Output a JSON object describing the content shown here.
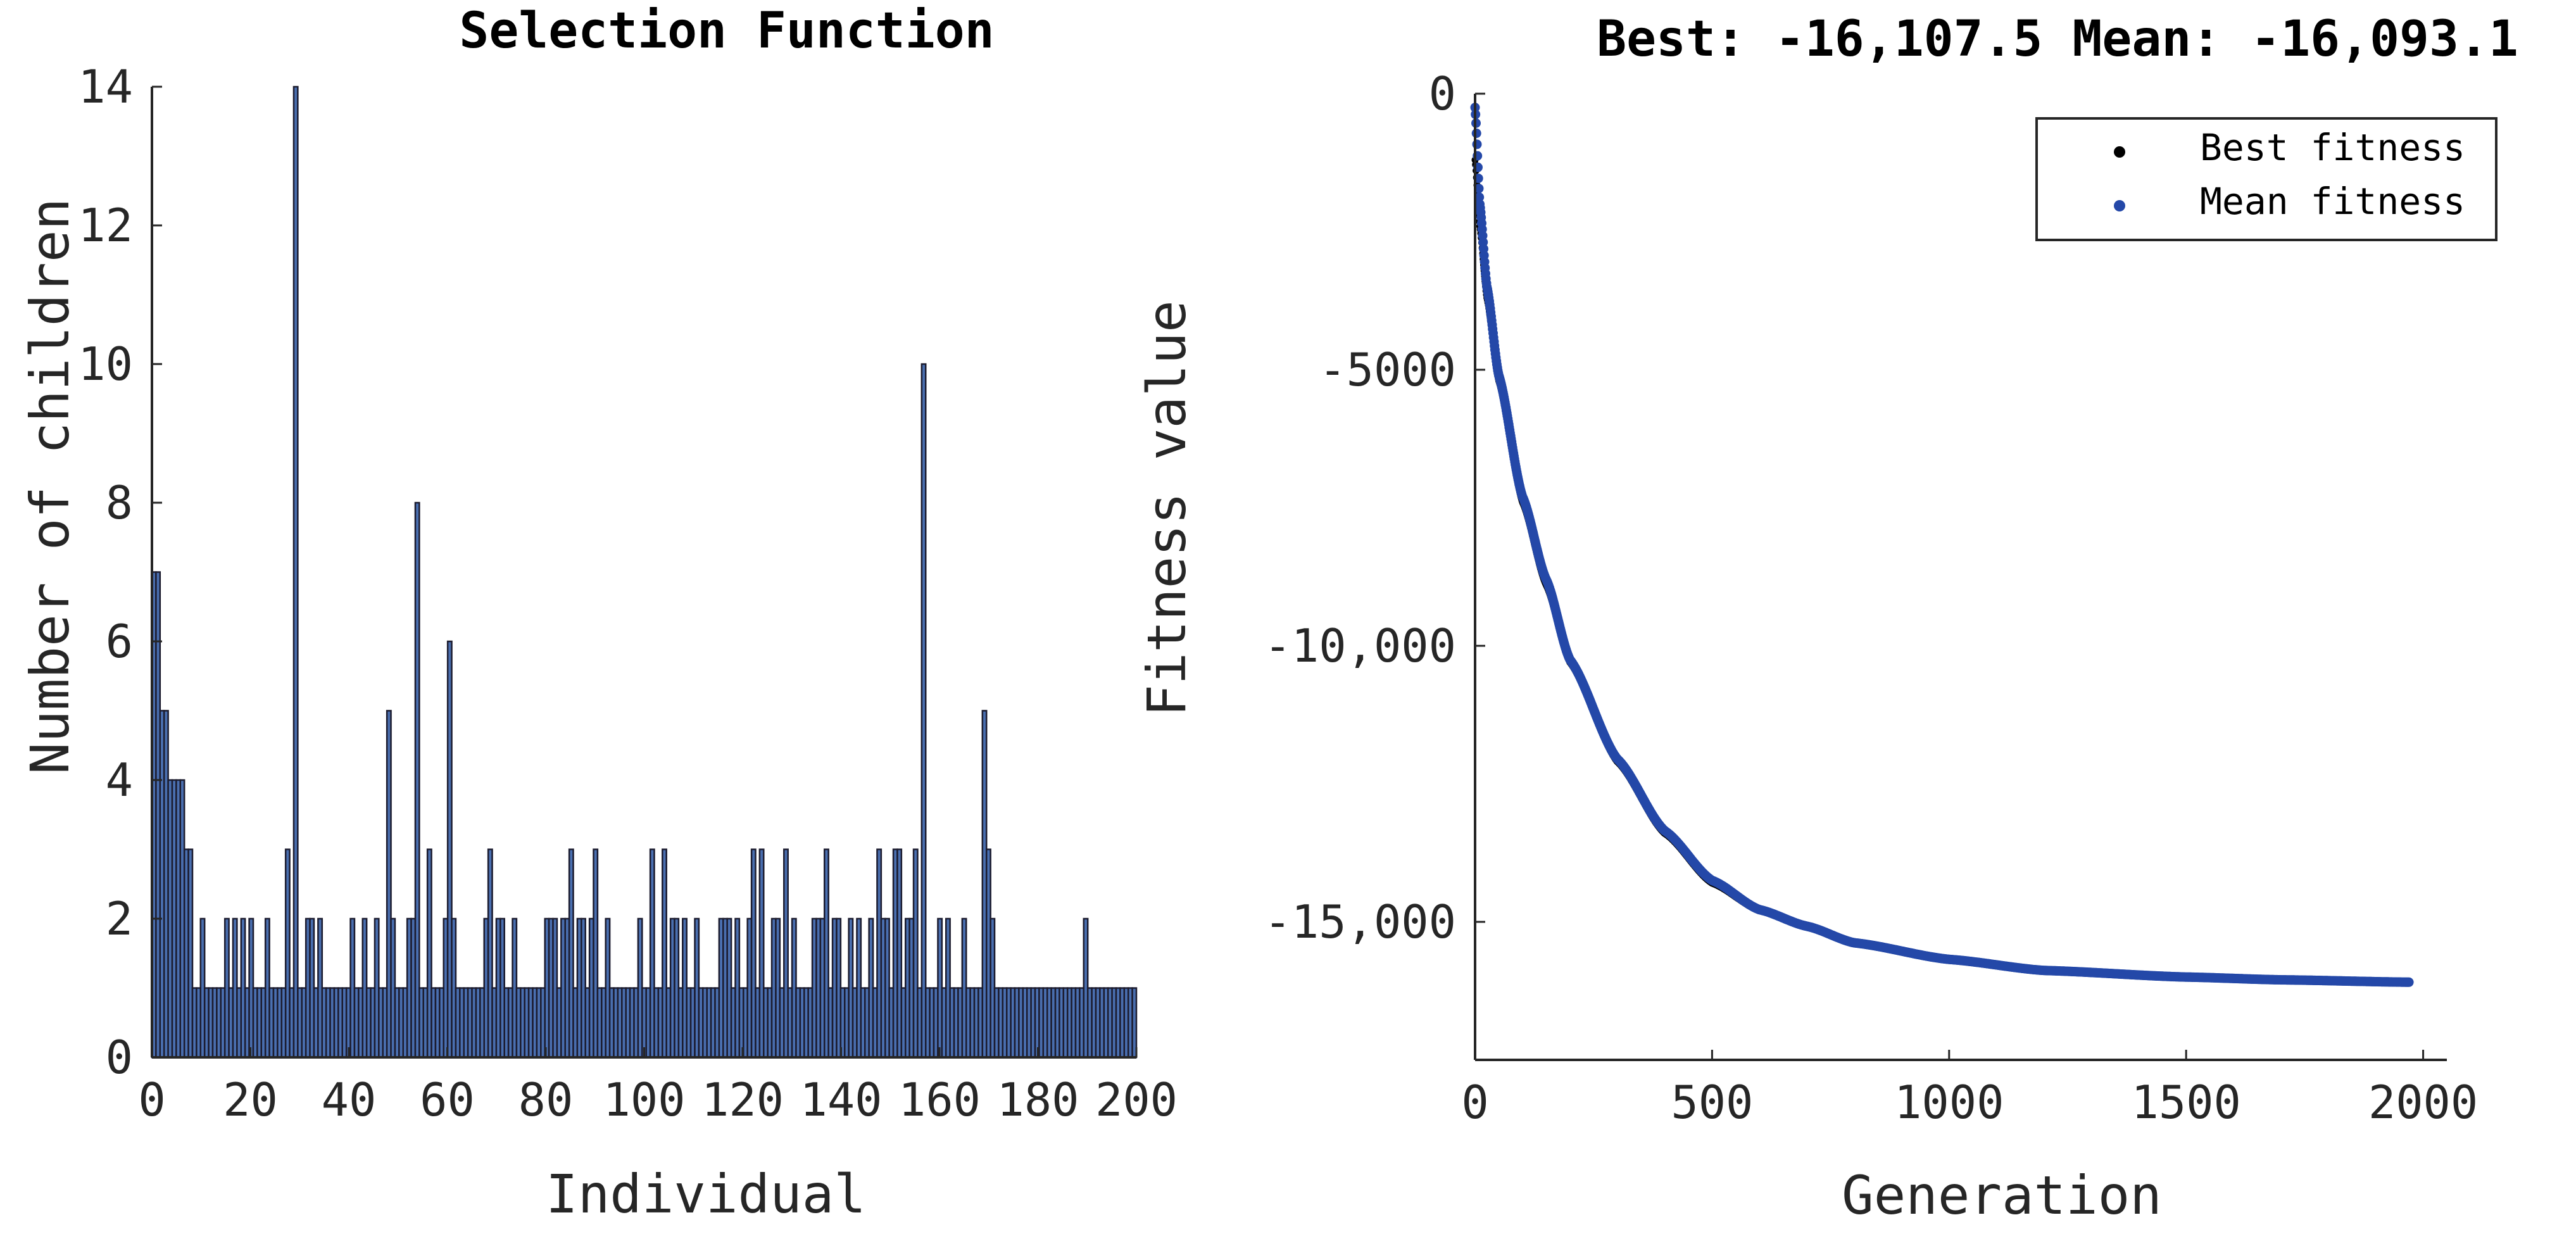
{
  "colors": {
    "bar_fill": "#4a6fb0",
    "bar_edge": "#1b1b2e",
    "best": "#000000",
    "mean": "#2448a8",
    "axis": "#262626",
    "legend_border": "#262626"
  },
  "chart_data": [
    {
      "type": "bar",
      "title": "Selection Function",
      "xlabel": "Individual",
      "ylabel": "Number of children",
      "xlim": [
        0,
        200
      ],
      "ylim": [
        0,
        14
      ],
      "xticks": [
        0,
        20,
        40,
        60,
        80,
        100,
        120,
        140,
        160,
        180,
        200
      ],
      "yticks": [
        0,
        2,
        4,
        6,
        8,
        10,
        12,
        14
      ],
      "xtick_labels": [
        "0",
        "20",
        "40",
        "60",
        "80",
        "100",
        "120",
        "140",
        "160",
        "180",
        "200"
      ],
      "ytick_labels": [
        "0",
        "2",
        "4",
        "6",
        "8",
        "10",
        "12",
        "14"
      ],
      "values": [
        7,
        7,
        5,
        5,
        4,
        4,
        4,
        4,
        3,
        3,
        1,
        1,
        2,
        1,
        1,
        1,
        1,
        1,
        2,
        1,
        2,
        1,
        2,
        1,
        2,
        1,
        1,
        1,
        2,
        1,
        1,
        1,
        1,
        3,
        1,
        14,
        1,
        1,
        2,
        2,
        1,
        2,
        1,
        1,
        1,
        1,
        1,
        1,
        1,
        2,
        1,
        1,
        2,
        1,
        1,
        2,
        1,
        1,
        5,
        2,
        1,
        1,
        1,
        2,
        2,
        8,
        1,
        1,
        3,
        1,
        1,
        1,
        2,
        6,
        2,
        1,
        1,
        1,
        1,
        1,
        1,
        1,
        2,
        3,
        1,
        2,
        2,
        1,
        1,
        2,
        1,
        1,
        1,
        1,
        1,
        1,
        1,
        2,
        2,
        2,
        1,
        2,
        2,
        3,
        1,
        2,
        2,
        1,
        2,
        3,
        1,
        1,
        2,
        1,
        1,
        1,
        1,
        1,
        1,
        1,
        2,
        1,
        1,
        3,
        1,
        1,
        3,
        1,
        2,
        2,
        1,
        2,
        1,
        1,
        2,
        1,
        1,
        1,
        1,
        1,
        2,
        2,
        2,
        1,
        2,
        1,
        1,
        2,
        3,
        1,
        3,
        1,
        1,
        2,
        2,
        1,
        3,
        1,
        2,
        1,
        1,
        1,
        1,
        2,
        2,
        2,
        3,
        1,
        2,
        2,
        1,
        1,
        2,
        1,
        2,
        1,
        1,
        2,
        1,
        3,
        2,
        2,
        1,
        3,
        3,
        1,
        2,
        2,
        3,
        1,
        10,
        1,
        1,
        1,
        2,
        1,
        2,
        1,
        1,
        1,
        2,
        1,
        1,
        1,
        1,
        5,
        3,
        2,
        1,
        1,
        1,
        1,
        1,
        1,
        1,
        1,
        1,
        1,
        1,
        1,
        1,
        1,
        1,
        1,
        1,
        1,
        1,
        1,
        1,
        1,
        2,
        1,
        1,
        1,
        1,
        1,
        1,
        1,
        1,
        1,
        1,
        1,
        1
      ]
    },
    {
      "type": "scatter",
      "title": "Best: -16,107.5 Mean: -16,093.1",
      "xlabel": "Generation",
      "ylabel": "Fitness value",
      "xlim": [
        0,
        2050
      ],
      "ylim": [
        -17500,
        0
      ],
      "xticks": [
        0,
        500,
        1000,
        1500,
        2000
      ],
      "yticks": [
        0,
        -5000,
        -10000,
        -15000
      ],
      "xtick_labels": [
        "0",
        "500",
        "1000",
        "1500",
        "2000"
      ],
      "ytick_labels": [
        "0",
        "-5000",
        "-10,000",
        "-15,000"
      ],
      "legend": {
        "position": "top-right",
        "entries": [
          "Best fitness",
          "Mean fitness"
        ]
      },
      "generations": 1970,
      "series": [
        {
          "name": "Best fitness",
          "anchors": [
            [
              0,
              -1200
            ],
            [
              10,
              -2400
            ],
            [
              25,
              -3700
            ],
            [
              50,
              -5200
            ],
            [
              100,
              -7400
            ],
            [
              150,
              -8900
            ],
            [
              200,
              -10300
            ],
            [
              300,
              -12100
            ],
            [
              400,
              -13400
            ],
            [
              500,
              -14300
            ],
            [
              600,
              -14800
            ],
            [
              700,
              -15100
            ],
            [
              800,
              -15400
            ],
            [
              1000,
              -15700
            ],
            [
              1200,
              -15900
            ],
            [
              1500,
              -16020
            ],
            [
              1700,
              -16060
            ],
            [
              1970,
              -16107.5
            ]
          ]
        },
        {
          "name": "Mean fitness",
          "anchors": [
            [
              0,
              -250
            ],
            [
              10,
              -2000
            ],
            [
              25,
              -3500
            ],
            [
              50,
              -5100
            ],
            [
              100,
              -7300
            ],
            [
              150,
              -8800
            ],
            [
              200,
              -10250
            ],
            [
              300,
              -12050
            ],
            [
              400,
              -13350
            ],
            [
              500,
              -14250
            ],
            [
              600,
              -14780
            ],
            [
              700,
              -15080
            ],
            [
              800,
              -15380
            ],
            [
              1000,
              -15680
            ],
            [
              1200,
              -15880
            ],
            [
              1500,
              -16000
            ],
            [
              1700,
              -16050
            ],
            [
              1970,
              -16093.1
            ]
          ]
        }
      ]
    }
  ]
}
